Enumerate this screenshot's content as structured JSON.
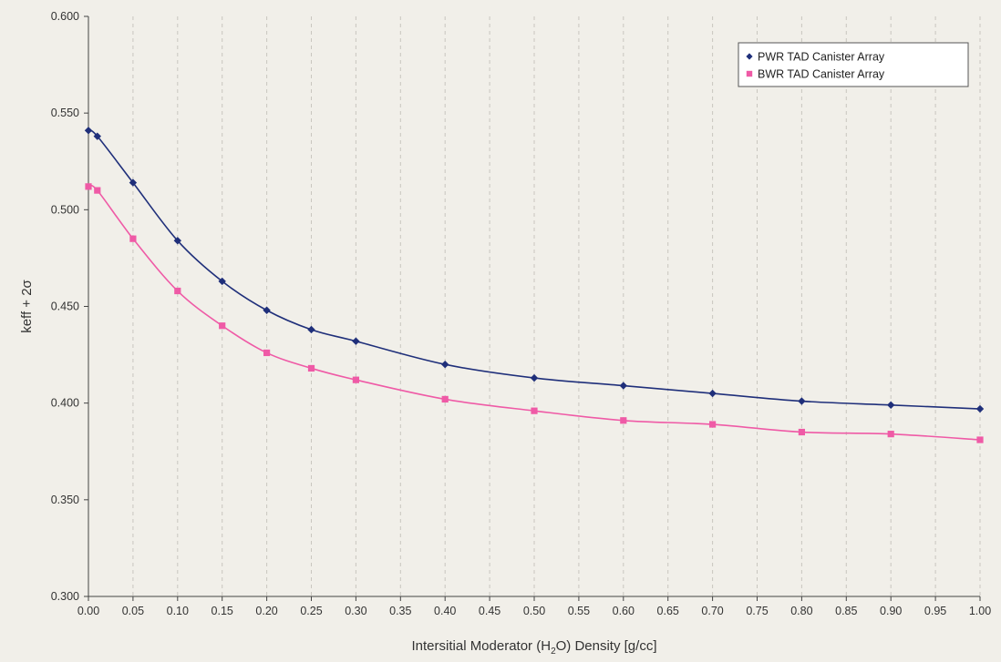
{
  "chart_data": {
    "type": "scatter",
    "title": "",
    "xlabel_parts": [
      "Intersitial Moderator (H",
      "2",
      "O) Density [g/cc]"
    ],
    "ylabel_parts": [
      "keff + 2",
      "σ"
    ],
    "xlim": [
      0.0,
      1.0
    ],
    "ylim": [
      0.3,
      0.6
    ],
    "x_ticks": [
      "0.00",
      "0.05",
      "0.10",
      "0.15",
      "0.20",
      "0.25",
      "0.30",
      "0.35",
      "0.40",
      "0.45",
      "0.50",
      "0.55",
      "0.60",
      "0.65",
      "0.70",
      "0.75",
      "0.80",
      "0.85",
      "0.90",
      "0.95",
      "1.00"
    ],
    "y_ticks": [
      "0.300",
      "0.350",
      "0.400",
      "0.450",
      "0.500",
      "0.550",
      "0.600"
    ],
    "grid": "vertical-dashed",
    "legend_position": "top-right",
    "series": [
      {
        "name": "PWR TAD Canister Array",
        "color": "#1f2f7a",
        "marker": "diamond",
        "x": [
          0.0,
          0.01,
          0.05,
          0.1,
          0.15,
          0.2,
          0.25,
          0.3,
          0.4,
          0.5,
          0.6,
          0.7,
          0.8,
          0.9,
          1.0
        ],
        "y": [
          0.541,
          0.538,
          0.514,
          0.484,
          0.463,
          0.448,
          0.438,
          0.432,
          0.42,
          0.413,
          0.409,
          0.405,
          0.401,
          0.399,
          0.397
        ]
      },
      {
        "name": "BWR TAD Canister Array",
        "color": "#ef5aa6",
        "marker": "square",
        "x": [
          0.0,
          0.01,
          0.05,
          0.1,
          0.15,
          0.2,
          0.25,
          0.3,
          0.4,
          0.5,
          0.6,
          0.7,
          0.8,
          0.9,
          1.0
        ],
        "y": [
          0.512,
          0.51,
          0.485,
          0.458,
          0.44,
          0.426,
          0.418,
          0.412,
          0.402,
          0.396,
          0.391,
          0.389,
          0.385,
          0.384,
          0.381
        ]
      }
    ]
  }
}
